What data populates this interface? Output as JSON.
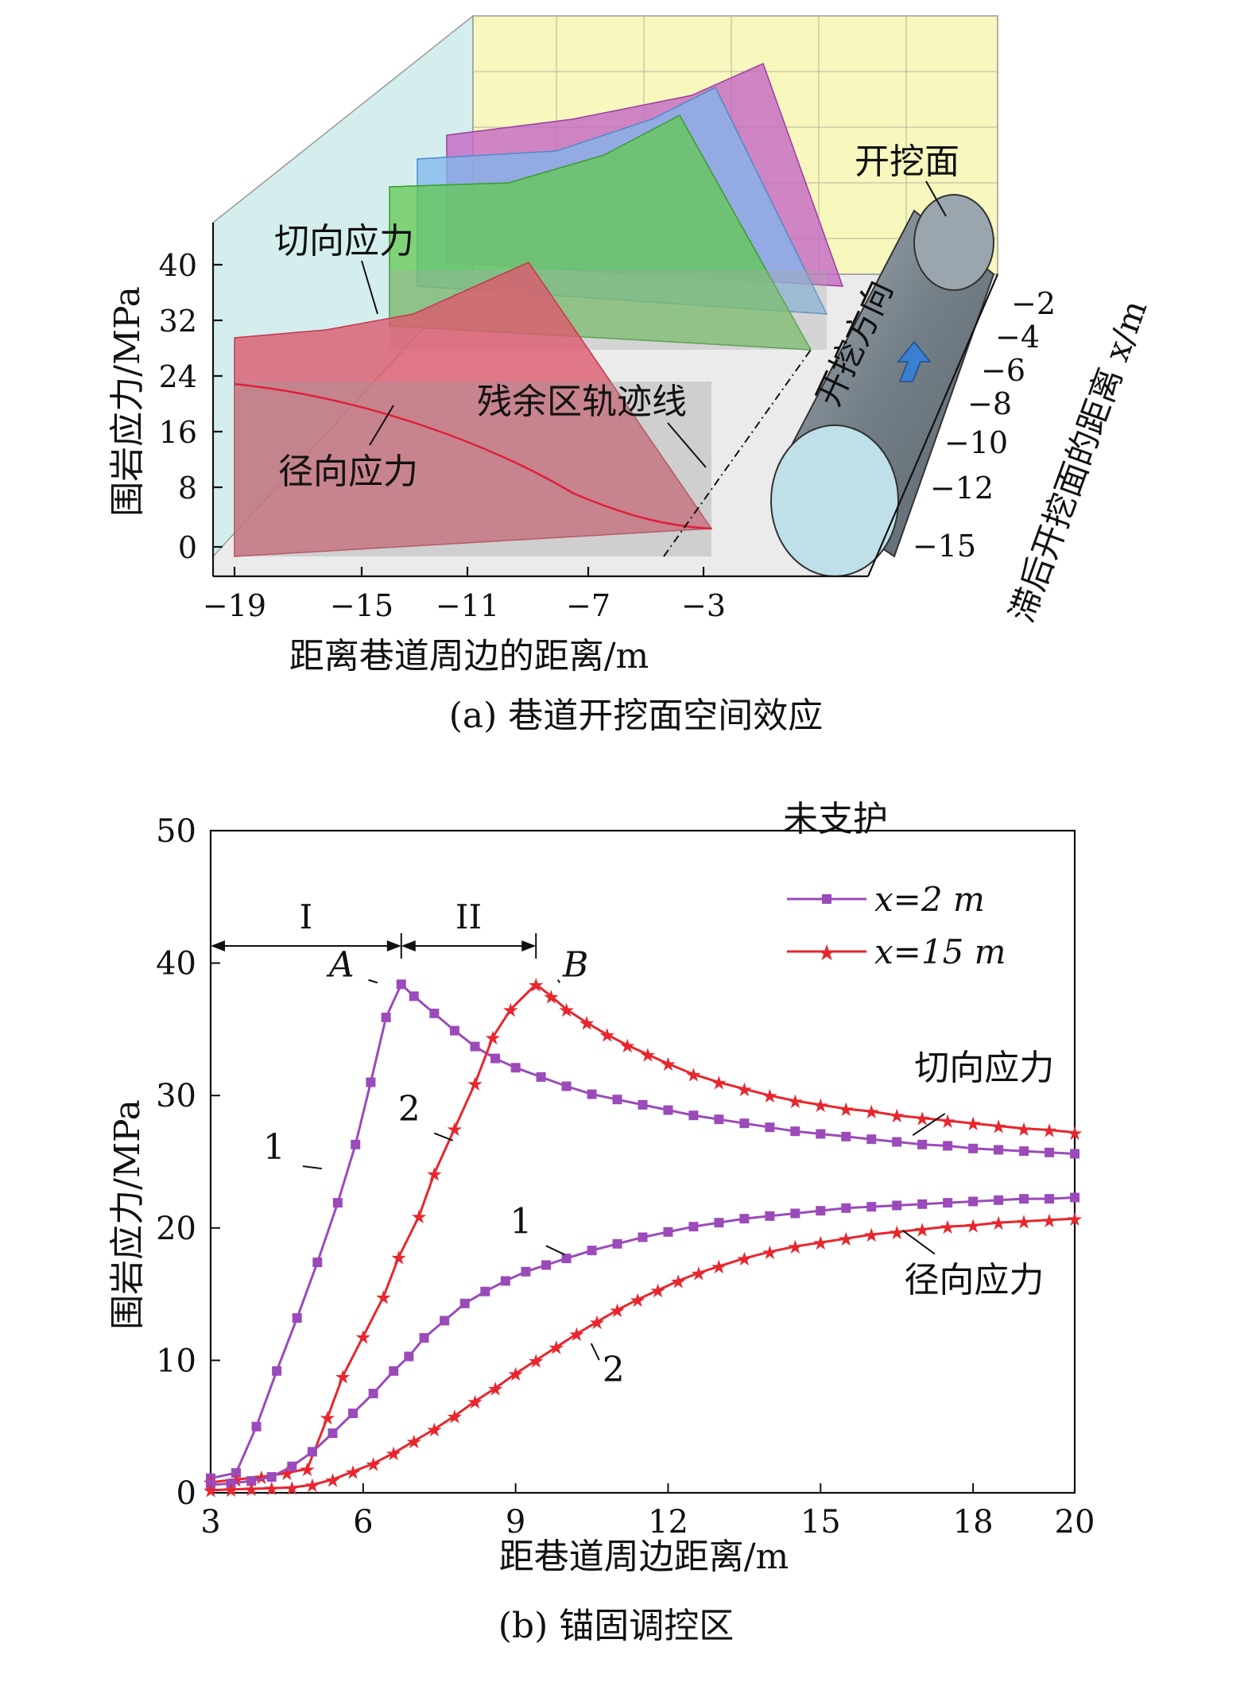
{
  "panel_a": {
    "caption": "(a) 巷道开挖面空间效应",
    "ylabel": "围岩应力/MPa",
    "xlabel": "距离巷道周边的距离/m",
    "zlabel": "滞后开挖面的距离 x/m",
    "y_ticks": [
      "40",
      "32",
      "24",
      "16",
      "8",
      "0"
    ],
    "x_ticks": [
      "−19",
      "−15",
      "−11",
      "−7",
      "−3"
    ],
    "z_ticks": [
      "−2",
      "−4",
      "−6",
      "−8",
      "−10",
      "−12",
      "−15"
    ],
    "annotations": {
      "tangential": "切向应力",
      "radial": "径向应力",
      "residual_trace": "残余区轨迹线",
      "excavation_face": "开挖面",
      "excavation_direction": "开挖方向"
    },
    "colors": {
      "back_wall": "#f7f7be",
      "side_wall": "#d4eeee",
      "floor": "#ebebeb",
      "magenta": "#c466c6",
      "blue": "#7fb8ec",
      "green": "#63c850",
      "red": "#dc5a6e",
      "tunnel": "#7f8a92",
      "arrow": "#3a7fd0"
    }
  },
  "chart_data": {
    "type": "line",
    "caption": "(b) 锚固调控区",
    "xlabel": "距巷道周边距离/m",
    "ylabel": "围岩应力/MPa",
    "xlim": [
      3,
      20
    ],
    "ylim": [
      0,
      50
    ],
    "x_ticks": [
      3,
      6,
      9,
      12,
      15,
      18,
      20
    ],
    "y_ticks": [
      0,
      10,
      20,
      30,
      40,
      50
    ],
    "legend": {
      "title": "未支护",
      "entries": [
        "x=2 m",
        "x=15 m"
      ],
      "position": "top-right"
    },
    "regions": [
      {
        "label": "I",
        "x_start": 3,
        "x_end": 6.75
      },
      {
        "label": "II",
        "x_start": 6.75,
        "x_end": 9.4
      }
    ],
    "region_arrow_y": 41.3,
    "annotations": [
      {
        "text": "A",
        "x": 6.75,
        "y": 38.4
      },
      {
        "text": "B",
        "x": 9.4,
        "y": 38.4
      },
      {
        "text": "1",
        "x": 5.5,
        "y": 24
      },
      {
        "text": "2",
        "x": 8.0,
        "y": 26
      },
      {
        "text": "1",
        "x": 10.2,
        "y": 17.5
      },
      {
        "text": "2",
        "x": 10.3,
        "y": 12
      },
      {
        "text": "切向应力",
        "x": 16.5,
        "y": 25.5
      },
      {
        "text": "径向应力",
        "x": 16.3,
        "y": 21.5
      }
    ],
    "series": [
      {
        "name": "x=2 m",
        "group": "切向应力",
        "color": "#9b4aba",
        "marker": "square",
        "x": [
          3.0,
          3.5,
          3.9,
          4.3,
          4.7,
          5.1,
          5.5,
          5.85,
          6.15,
          6.45,
          6.75,
          7.0,
          7.4,
          7.8,
          8.2,
          8.6,
          9.0,
          9.5,
          10.0,
          10.5,
          11.0,
          11.5,
          12.0,
          12.5,
          13.0,
          13.5,
          14.0,
          14.5,
          15.0,
          15.5,
          16.0,
          16.5,
          17.0,
          17.5,
          18.0,
          18.5,
          19.0,
          19.5,
          20.0
        ],
        "y": [
          1.1,
          1.5,
          5.0,
          9.2,
          13.2,
          17.4,
          21.9,
          26.3,
          31.0,
          35.9,
          38.4,
          37.5,
          36.2,
          34.9,
          33.7,
          32.8,
          32.1,
          31.4,
          30.7,
          30.1,
          29.7,
          29.3,
          28.9,
          28.5,
          28.2,
          27.9,
          27.6,
          27.3,
          27.1,
          26.9,
          26.7,
          26.5,
          26.3,
          26.2,
          26.0,
          25.9,
          25.8,
          25.7,
          25.6
        ]
      },
      {
        "name": "x=15 m",
        "group": "切向应力",
        "color": "#e8262d",
        "marker": "star",
        "x": [
          3.0,
          3.5,
          4.0,
          4.5,
          4.9,
          5.3,
          5.6,
          6.0,
          6.4,
          6.7,
          7.1,
          7.4,
          7.8,
          8.2,
          8.55,
          8.9,
          9.4,
          9.7,
          10.0,
          10.4,
          10.8,
          11.2,
          11.6,
          12.0,
          12.5,
          13.0,
          13.5,
          14.0,
          14.5,
          15.0,
          15.5,
          16.0,
          16.5,
          17.0,
          17.5,
          18.0,
          18.5,
          19.0,
          19.5,
          20.0
        ],
        "y": [
          0.8,
          1.0,
          1.2,
          1.5,
          1.8,
          5.7,
          8.8,
          11.8,
          14.8,
          17.8,
          20.9,
          24.1,
          27.5,
          30.9,
          34.4,
          36.5,
          38.4,
          37.5,
          36.5,
          35.5,
          34.6,
          33.8,
          33.1,
          32.4,
          31.6,
          31.0,
          30.5,
          30.0,
          29.6,
          29.3,
          29.0,
          28.8,
          28.5,
          28.3,
          28.1,
          27.9,
          27.7,
          27.5,
          27.4,
          27.2
        ]
      },
      {
        "name": "x=2 m",
        "group": "径向应力",
        "color": "#9b4aba",
        "marker": "square",
        "x": [
          3.0,
          3.4,
          3.8,
          4.2,
          4.6,
          5.0,
          5.4,
          5.8,
          6.2,
          6.6,
          6.9,
          7.2,
          7.6,
          8.0,
          8.4,
          8.8,
          9.2,
          9.6,
          10.0,
          10.5,
          11.0,
          11.5,
          12.0,
          12.5,
          13.0,
          13.5,
          14.0,
          14.5,
          15.0,
          15.5,
          16.0,
          16.5,
          17.0,
          17.5,
          18.0,
          18.5,
          19.0,
          19.5,
          20.0
        ],
        "y": [
          0.6,
          0.7,
          0.9,
          1.2,
          2.0,
          3.1,
          4.5,
          6.0,
          7.5,
          9.2,
          10.3,
          11.7,
          13.0,
          14.3,
          15.2,
          16.0,
          16.7,
          17.2,
          17.7,
          18.3,
          18.8,
          19.3,
          19.7,
          20.1,
          20.4,
          20.7,
          20.9,
          21.1,
          21.3,
          21.5,
          21.6,
          21.7,
          21.8,
          21.9,
          22.0,
          22.1,
          22.2,
          22.2,
          22.3
        ]
      },
      {
        "name": "x=15 m",
        "group": "径向应力",
        "color": "#e8262d",
        "marker": "star",
        "x": [
          3.0,
          3.4,
          3.8,
          4.2,
          4.6,
          5.0,
          5.4,
          5.8,
          6.2,
          6.6,
          7.0,
          7.4,
          7.8,
          8.2,
          8.6,
          9.0,
          9.4,
          9.8,
          10.2,
          10.6,
          11.0,
          11.4,
          11.8,
          12.2,
          12.6,
          13.0,
          13.5,
          14.0,
          14.5,
          15.0,
          15.5,
          16.0,
          16.5,
          17.0,
          17.5,
          18.0,
          18.5,
          19.0,
          19.5,
          20.0
        ],
        "y": [
          0.2,
          0.25,
          0.3,
          0.35,
          0.4,
          0.6,
          1.0,
          1.6,
          2.2,
          3.0,
          3.9,
          4.8,
          5.8,
          6.9,
          7.9,
          9.0,
          10.0,
          11.0,
          12.0,
          12.9,
          13.8,
          14.6,
          15.3,
          16.0,
          16.6,
          17.1,
          17.7,
          18.2,
          18.6,
          18.9,
          19.2,
          19.5,
          19.7,
          19.9,
          20.1,
          20.2,
          20.4,
          20.5,
          20.6,
          20.7
        ]
      }
    ]
  }
}
